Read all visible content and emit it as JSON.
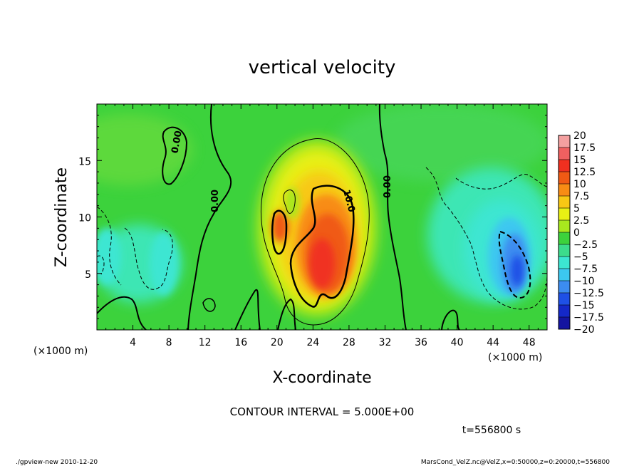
{
  "chart_data": {
    "type": "heatmap",
    "title": "vertical velocity",
    "xlabel": "X-coordinate",
    "ylabel": "Z-coordinate",
    "x_unit": "(×1000 m)",
    "y_unit": "(×1000 m)",
    "xlim": [
      0,
      50
    ],
    "ylim": [
      0,
      20
    ],
    "x_ticks": [
      "4",
      "8",
      "12",
      "16",
      "20",
      "24",
      "28",
      "32",
      "36",
      "40",
      "44",
      "48"
    ],
    "y_ticks": [
      "5",
      "10",
      "15"
    ],
    "x_tick_values": [
      4,
      8,
      12,
      16,
      20,
      24,
      28,
      32,
      36,
      40,
      44,
      48
    ],
    "y_tick_values": [
      5,
      10,
      15
    ],
    "colorbar": {
      "labels": [
        "20",
        "17.5",
        "15",
        "12.5",
        "10",
        "7.5",
        "5",
        "2.5",
        "0",
        "−2.5",
        "−5",
        "−7.5",
        "−10",
        "−12.5",
        "−15",
        "−17.5",
        "−20"
      ],
      "colors": [
        "#f4a0a0",
        "#f06060",
        "#f03020",
        "#f05a14",
        "#f88c14",
        "#f8c814",
        "#e8f014",
        "#a8e81e",
        "#3cd23c",
        "#3cdc8c",
        "#3ce6d2",
        "#3cc8f0",
        "#3c8cf0",
        "#1e50e6",
        "#1428c8",
        "#1414a0",
        "#6014b4"
      ]
    },
    "features": [
      {
        "kind": "updraft",
        "x": 25,
        "z": 8,
        "peak": 14,
        "color": "#f05a14"
      },
      {
        "kind": "updraft",
        "x": 20,
        "z": 9.5,
        "peak": 12,
        "color": "#f03020"
      },
      {
        "kind": "downdraft",
        "x": 46.5,
        "z": 6,
        "peak": -12,
        "color": "#1e50e6"
      },
      {
        "kind": "downdraft",
        "x": 7.5,
        "z": 6,
        "peak": -5,
        "color": "#3ce6d2"
      }
    ],
    "contour_labels": [
      "0.00",
      "0.00",
      "10.0",
      "0.00"
    ],
    "contour_interval": "CONTOUR INTERVAL = 5.000E+00",
    "time": "t=556800 s"
  },
  "footer": {
    "left": "./gpview-new   2010-12-20",
    "right": "MarsCond_VelZ.nc@VelZ,x=0:50000,z=0:20000,t=556800"
  }
}
